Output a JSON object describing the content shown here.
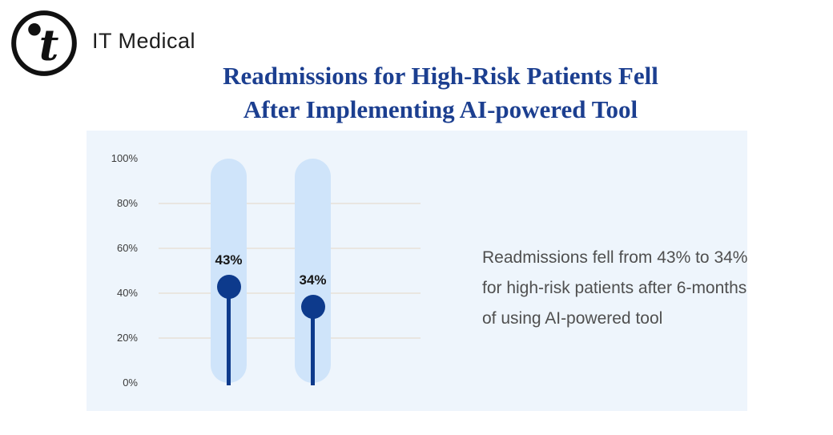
{
  "brand": {
    "name": "IT Medical"
  },
  "title": {
    "line1": "Readmissions for High-Risk Patients Fell",
    "line2": "After Implementing AI-powered Tool"
  },
  "chart_data": {
    "type": "bar",
    "subtype": "slider-lollipop",
    "title": "Readmissions for High-Risk Patients Fell After Implementing AI-powered Tool",
    "values": [
      43,
      34
    ],
    "point_labels": [
      "43%",
      "34%"
    ],
    "y_tick_values": [
      100,
      80,
      60,
      40,
      20,
      0
    ],
    "y_tick_labels": [
      "100%",
      "80%",
      "60%",
      "40%",
      "20%",
      "0%"
    ],
    "gridline_values": [
      80,
      60,
      40,
      20
    ],
    "ylim": [
      0,
      100
    ],
    "grid": true,
    "legend": false,
    "annotation": "Readmissions fell from 43% to 34% for high-risk patients after 6-months of using AI-powered tool"
  },
  "annotation": {
    "lines": [
      "Readmissions fell from 43% to 34%",
      "for high-risk patients after 6-months",
      "of using AI-powered tool"
    ]
  },
  "colors": {
    "accent_navy": "#0d3a8c",
    "track_blue": "#cfe4fa",
    "panel_bg": "#eef5fc",
    "title_blue": "#1c3f90",
    "gridline": "#e9e6e1",
    "brand_black": "#1d1d1d",
    "text_gray": "#4f4f4f",
    "tick_gray": "#3b3b3b"
  }
}
